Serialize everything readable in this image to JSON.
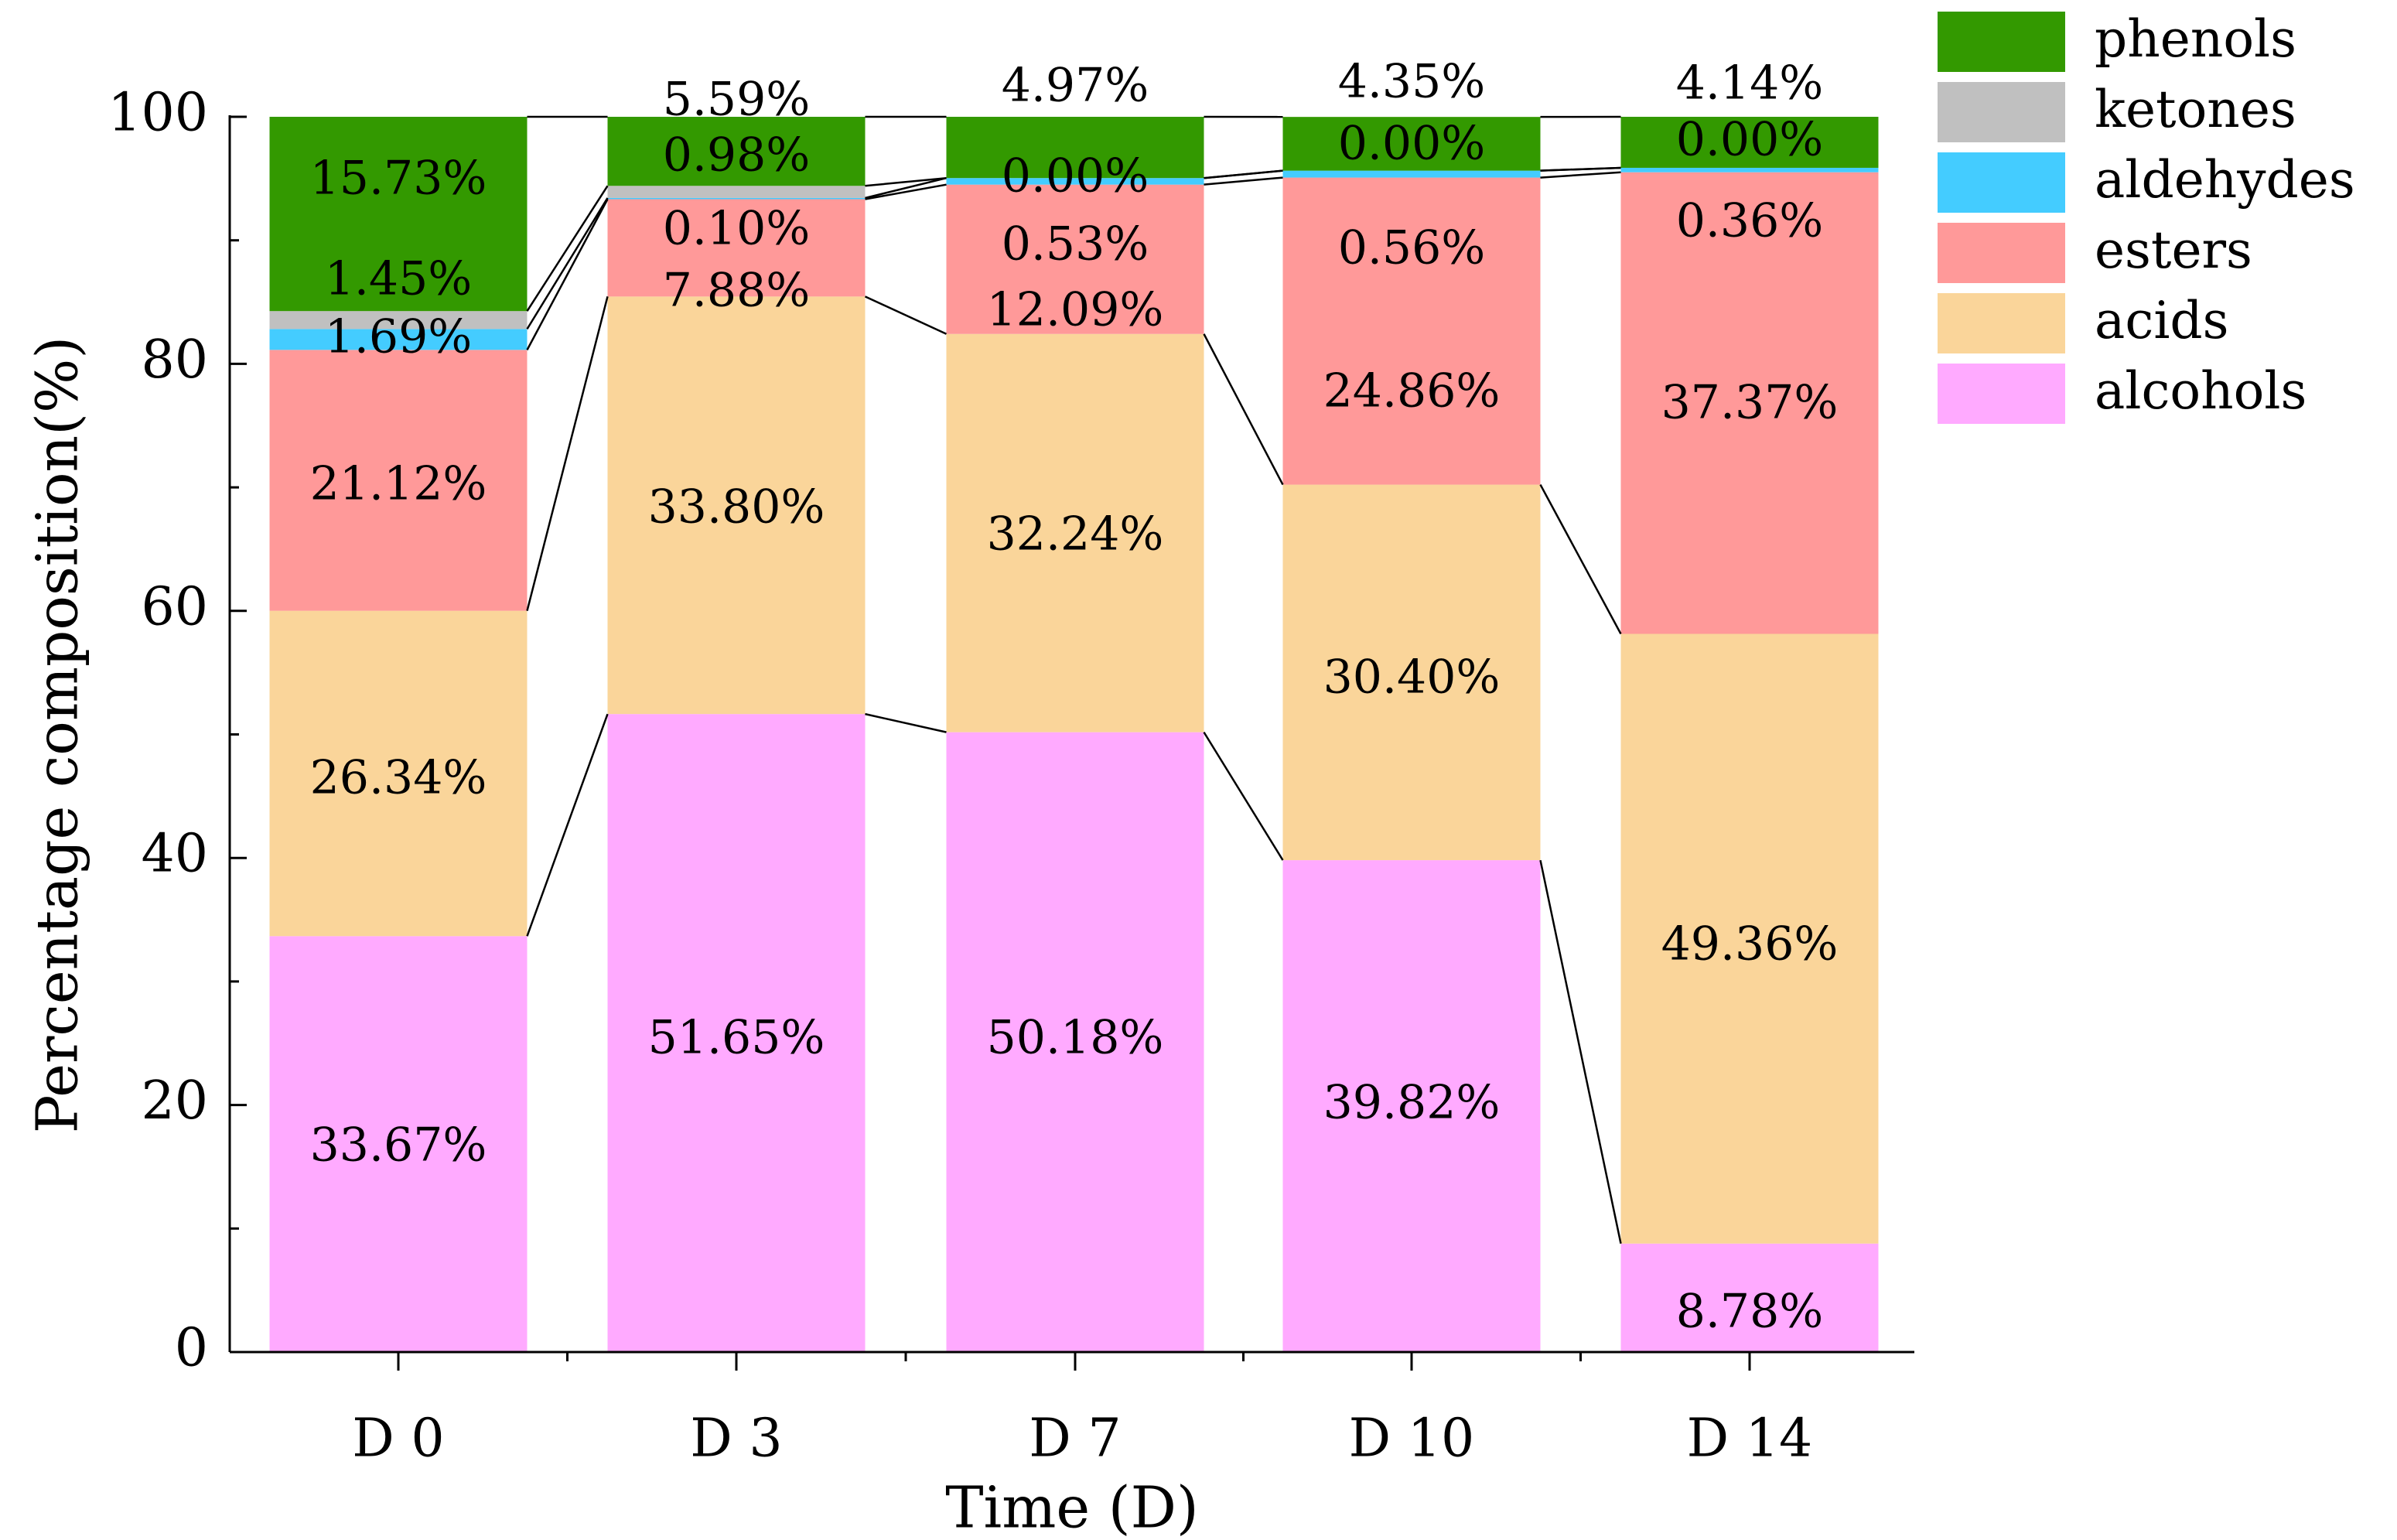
{
  "chart_data": {
    "type": "bar",
    "stacked": true,
    "title": "",
    "xlabel": "Time (D)",
    "ylabel": "Percentage composition(%)",
    "ylim": [
      0,
      100
    ],
    "yticks": [
      "0",
      "20",
      "40",
      "60",
      "80",
      "100"
    ],
    "categories": [
      "D 0",
      "D 3",
      "D 7",
      "D 10",
      "D 14"
    ],
    "series": [
      {
        "name": "alcohols",
        "color": "#FFAAFF",
        "values": [
          33.67,
          51.65,
          50.18,
          39.82,
          8.78
        ],
        "labels": [
          "33.67%",
          "51.65%",
          "50.18%",
          "39.82%",
          "8.78%"
        ]
      },
      {
        "name": "acids",
        "color": "#FAD59A",
        "values": [
          26.34,
          33.8,
          32.24,
          30.4,
          49.36
        ],
        "labels": [
          "26.34%",
          "33.80%",
          "32.24%",
          "30.40%",
          "49.36%"
        ]
      },
      {
        "name": "esters",
        "color": "#FF9999",
        "values": [
          21.12,
          7.88,
          12.09,
          24.86,
          37.37
        ],
        "labels": [
          "21.12%",
          "7.88%",
          "12.09%",
          "24.86%",
          "37.37%"
        ]
      },
      {
        "name": "aldehydes",
        "color": "#44CCFF",
        "values": [
          1.69,
          0.1,
          0.53,
          0.56,
          0.36
        ],
        "labels": [
          "1.69%",
          "0.10%",
          "0.53%",
          "0.56%",
          "0.36%"
        ]
      },
      {
        "name": "ketones",
        "color": "#C0C0C0",
        "values": [
          1.45,
          0.98,
          0.0,
          0.0,
          0.0
        ],
        "labels": [
          "1.45%",
          "0.98%",
          "0.00%",
          "0.00%",
          "0.00%"
        ]
      },
      {
        "name": "phenols",
        "color": "#339900",
        "values": [
          15.73,
          5.59,
          4.97,
          4.35,
          4.14
        ],
        "labels": [
          "15.73%",
          "5.59%",
          "4.97%",
          "4.35%",
          "4.14%"
        ]
      }
    ],
    "legend_order": [
      "phenols",
      "ketones",
      "aldehydes",
      "esters",
      "acids",
      "alcohols"
    ],
    "legend_position": "top-right",
    "connector_lines": true,
    "grid": false
  }
}
